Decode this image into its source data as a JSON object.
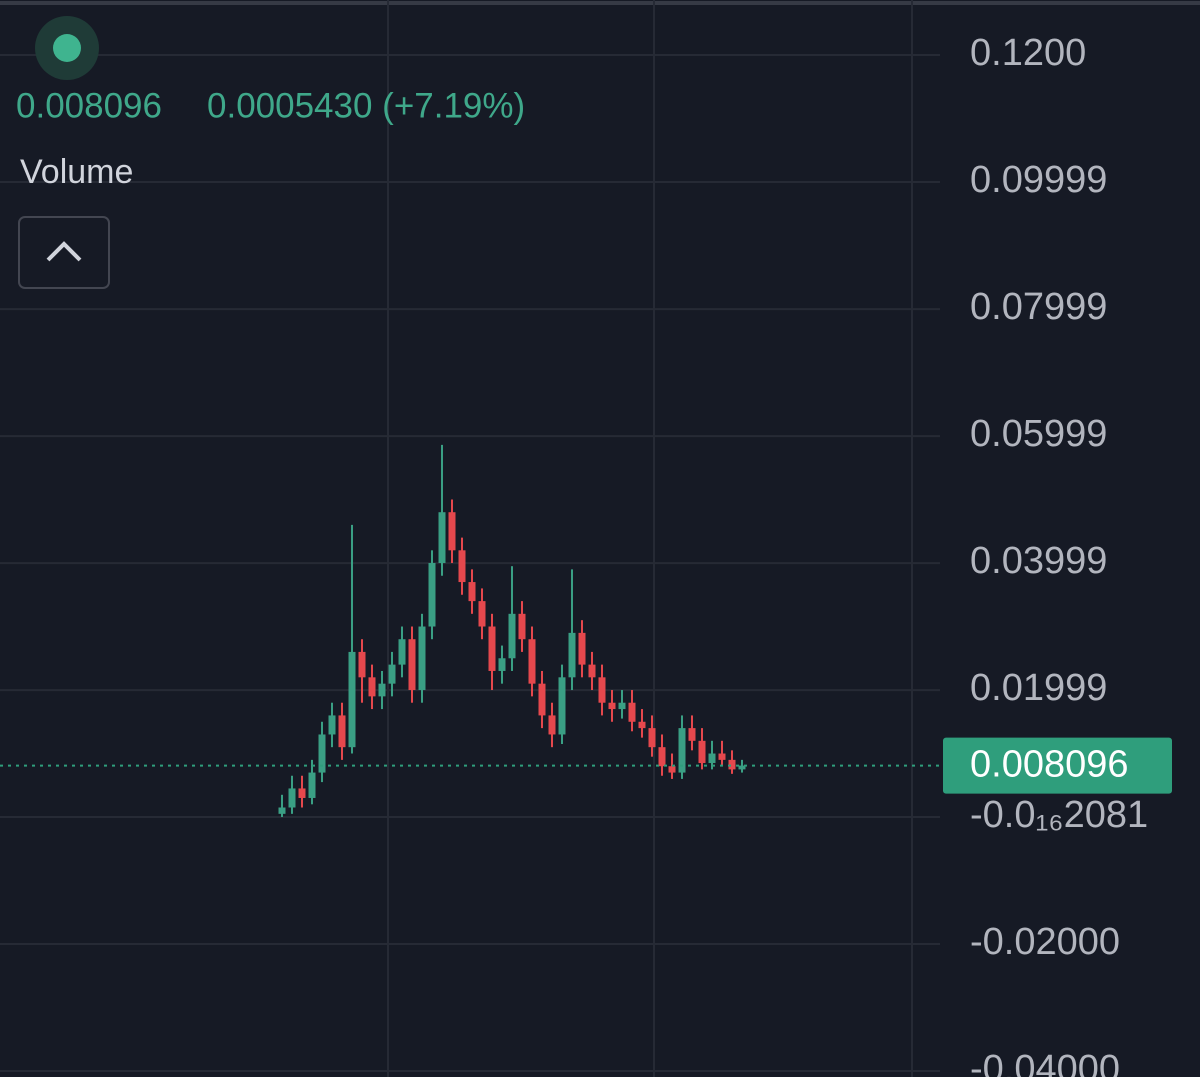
{
  "chart_data": {
    "type": "candlestick",
    "price_text": "0.008096",
    "change_text": "0.0005430 (+7.19%)",
    "volume_label": "Volume",
    "last_price": 0.008096,
    "up_color": "#3a9f84",
    "down_color": "#e5484d",
    "last_price_color": "#2f9e7c",
    "ylim": [
      -0.04094,
      0.12866
    ],
    "yticks": [
      {
        "value": 0.12,
        "label": "0.1200"
      },
      0.09999,
      0.07999,
      0.05999,
      0.03999,
      0.01999,
      {
        "value": -2.081e-17,
        "label": "-0.0₁₆2081"
      },
      {
        "value": -0.02,
        "label": "-0.02000"
      },
      {
        "value": -0.04,
        "label": "-0.04000"
      }
    ],
    "grid": true,
    "open": [
      0.0005,
      0.0015,
      0.0045,
      0.003,
      0.007,
      0.013,
      0.016,
      0.011,
      0.026,
      0.022,
      0.019,
      0.021,
      0.024,
      0.028,
      0.02,
      0.03,
      0.04,
      0.048,
      0.042,
      0.037,
      0.034,
      0.03,
      0.023,
      0.025,
      0.032,
      0.028,
      0.021,
      0.016,
      0.013,
      0.022,
      0.029,
      0.024,
      0.022,
      0.018,
      0.017,
      0.018,
      0.015,
      0.014,
      0.011,
      0.008,
      0.007,
      0.014,
      0.012,
      0.0085,
      0.01,
      0.009,
      0.0075
    ],
    "high": [
      0.0035,
      0.0065,
      0.0065,
      0.009,
      0.015,
      0.018,
      0.018,
      0.046,
      0.028,
      0.024,
      0.023,
      0.026,
      0.03,
      0.03,
      0.032,
      0.042,
      0.0586,
      0.05,
      0.044,
      0.039,
      0.036,
      0.032,
      0.027,
      0.0395,
      0.034,
      0.03,
      0.023,
      0.018,
      0.024,
      0.039,
      0.031,
      0.026,
      0.024,
      0.02,
      0.02,
      0.02,
      0.017,
      0.016,
      0.013,
      0.01,
      0.016,
      0.016,
      0.014,
      0.012,
      0.012,
      0.0105,
      0.009
    ],
    "low": [
      0,
      0.0005,
      0.0015,
      0.002,
      0.0055,
      0.011,
      0.009,
      0.01,
      0.018,
      0.017,
      0.017,
      0.019,
      0.022,
      0.018,
      0.018,
      0.028,
      0.038,
      0.04,
      0.035,
      0.032,
      0.028,
      0.02,
      0.021,
      0.023,
      0.026,
      0.019,
      0.014,
      0.011,
      0.0115,
      0.02,
      0.022,
      0.02,
      0.016,
      0.015,
      0.0155,
      0.0135,
      0.0125,
      0.0095,
      0.0065,
      0.006,
      0.006,
      0.0105,
      0.0075,
      0.0075,
      0.008,
      0.0068,
      0.007
    ],
    "close": [
      0.0015,
      0.0045,
      0.003,
      0.007,
      0.013,
      0.016,
      0.011,
      0.026,
      0.022,
      0.019,
      0.021,
      0.024,
      0.028,
      0.02,
      0.03,
      0.04,
      0.048,
      0.042,
      0.037,
      0.034,
      0.03,
      0.023,
      0.025,
      0.032,
      0.028,
      0.021,
      0.016,
      0.013,
      0.022,
      0.029,
      0.024,
      0.022,
      0.018,
      0.017,
      0.018,
      0.015,
      0.014,
      0.011,
      0.008,
      0.007,
      0.014,
      0.012,
      0.0085,
      0.01,
      0.009,
      0.0075,
      0.0081
    ]
  }
}
